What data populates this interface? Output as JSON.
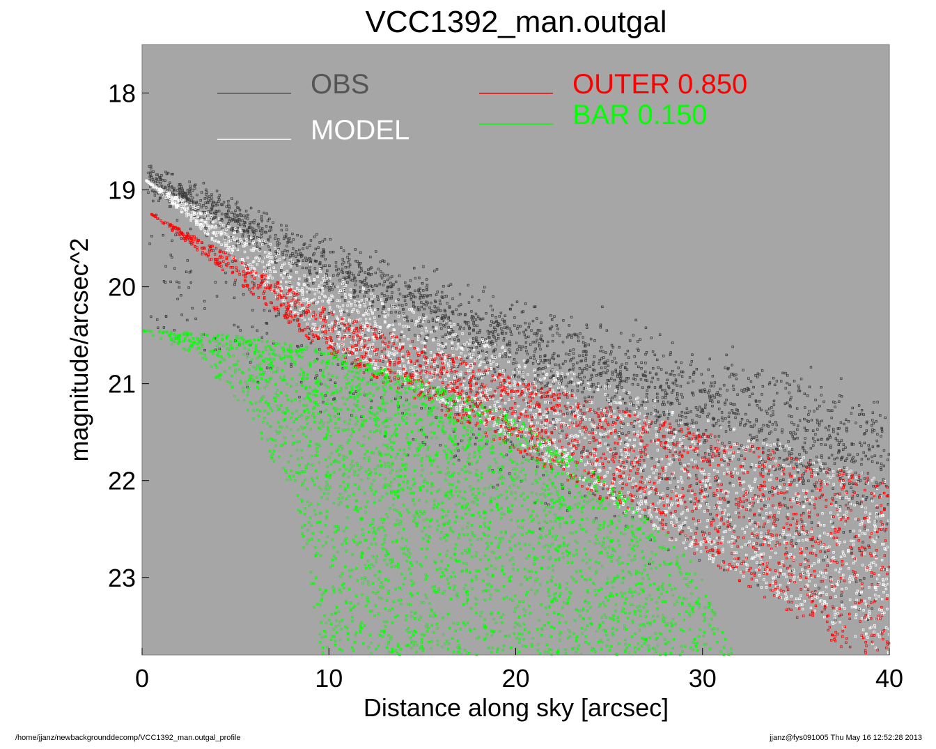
{
  "chart_data": {
    "type": "scatter",
    "title": "VCC1392_man.outgal",
    "xlabel": "Distance along sky [arcsec]",
    "ylabel": "magnitude/arcsec^2",
    "xlim": [
      0,
      40
    ],
    "ylim": [
      23.8,
      17.5
    ],
    "y_inverted": true,
    "x_ticks": [
      0,
      10,
      20,
      30,
      40
    ],
    "y_ticks": [
      18,
      19,
      20,
      21,
      22,
      23
    ],
    "grid": false,
    "background_color": "#a6a6a6",
    "legend": [
      {
        "label": "OBS",
        "color": "#555555"
      },
      {
        "label": "MODEL",
        "color": "#ffffff"
      },
      {
        "label": "OUTER  0.850",
        "color": "#ff0000"
      },
      {
        "label": "BAR  0.150",
        "color": "#00ff00"
      }
    ],
    "series": [
      {
        "name": "OBS",
        "color": "#3a3a3a",
        "description_points": [
          [
            0.3,
            18.9
          ],
          [
            5,
            19.3
          ],
          [
            10,
            19.8
          ],
          [
            15,
            20.2
          ],
          [
            20,
            20.6
          ],
          [
            25,
            20.9
          ],
          [
            30,
            21.2
          ],
          [
            35,
            21.5
          ],
          [
            40,
            21.8
          ]
        ],
        "scatter_spread": 0.6
      },
      {
        "name": "MODEL",
        "color": "#ffffff",
        "upper_edge": [
          [
            0.2,
            18.9
          ],
          [
            10,
            19.85
          ],
          [
            20,
            20.65
          ],
          [
            30,
            21.35
          ],
          [
            40,
            22.0
          ]
        ],
        "lower_edge": [
          [
            0.2,
            18.9
          ],
          [
            10,
            20.6
          ],
          [
            20,
            21.6
          ],
          [
            28,
            22.6
          ],
          [
            40,
            23.8
          ]
        ]
      },
      {
        "name": "OUTER  0.850",
        "color": "#ff0000",
        "upper_edge": [
          [
            0.5,
            19.25
          ],
          [
            5,
            19.7
          ],
          [
            10,
            20.25
          ],
          [
            20,
            20.95
          ],
          [
            30,
            21.5
          ],
          [
            40,
            22.0
          ]
        ],
        "lower_edge": [
          [
            0.5,
            19.25
          ],
          [
            10,
            20.7
          ],
          [
            20,
            21.7
          ],
          [
            30,
            22.8
          ],
          [
            38,
            23.8
          ]
        ]
      },
      {
        "name": "BAR  0.150",
        "color": "#00ff00",
        "upper_edge": [
          [
            0,
            20.45
          ],
          [
            5,
            20.5
          ],
          [
            10,
            20.65
          ],
          [
            15,
            20.95
          ],
          [
            20,
            21.35
          ],
          [
            25,
            22.0
          ],
          [
            29.5,
            22.8
          ],
          [
            31.7,
            23.8
          ]
        ],
        "lower_edge": [
          [
            0,
            20.45
          ],
          [
            3,
            20.75
          ],
          [
            6,
            21.4
          ],
          [
            8,
            22.2
          ],
          [
            9,
            23.0
          ],
          [
            9.5,
            23.8
          ]
        ]
      }
    ]
  },
  "footer": {
    "path": "/home/jjanz/newbackgrounddecomp/VCC1392_man.outgal_profile",
    "stamp": "jjanz@fys091005  Thu May 16 12:52:28 2013"
  }
}
